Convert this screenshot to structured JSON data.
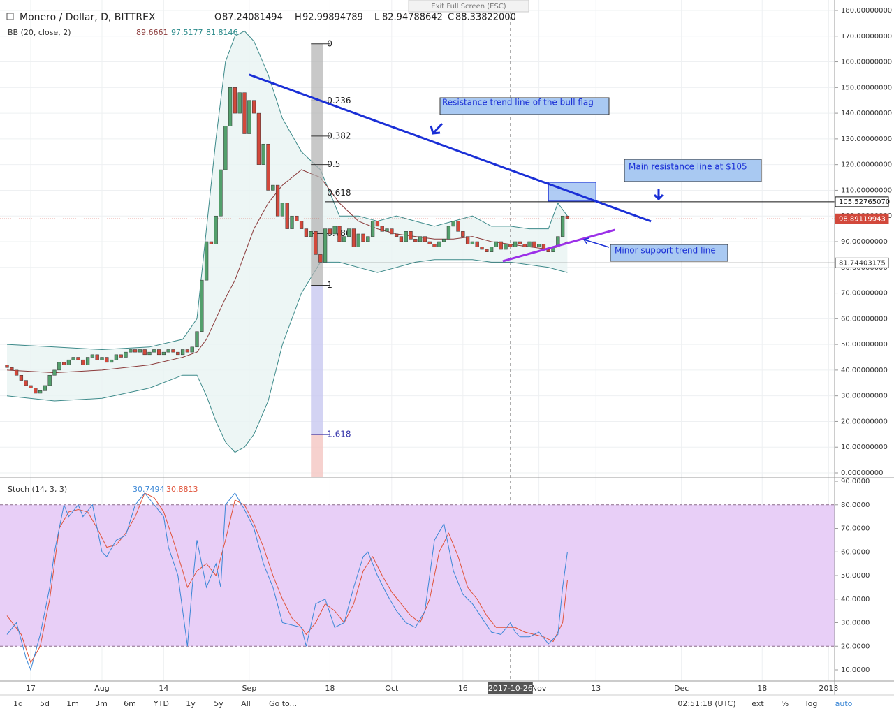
{
  "chart_data": {
    "type": "candlestick",
    "title": "Monero / Dollar, D, BITTREX",
    "fullscreen_hint": "Exit Full Screen (ESC)",
    "ohlc_header": {
      "labels": [
        "O",
        "H",
        "L",
        "C"
      ],
      "values": [
        "87.24081494",
        "92.99894789",
        "82.94788642",
        "88.33822000"
      ]
    },
    "open": [
      42,
      41,
      40,
      38,
      36,
      34,
      33,
      31,
      32,
      34,
      38,
      40,
      43,
      42,
      44,
      45,
      44,
      42,
      45,
      46,
      44,
      45,
      43,
      44,
      46,
      45,
      47,
      48,
      47,
      48,
      46,
      47,
      48,
      46,
      47,
      48,
      47,
      46,
      48,
      47,
      49,
      55,
      75,
      90,
      89,
      100,
      118,
      135,
      150,
      140,
      148,
      132,
      145,
      140,
      120,
      128,
      110,
      112,
      100,
      105,
      95,
      100,
      98,
      95,
      92,
      94,
      85,
      82,
      95,
      93,
      96,
      90,
      92,
      95,
      88,
      93,
      90,
      92,
      98,
      96,
      94,
      95,
      93,
      92,
      90,
      94,
      91,
      90,
      92,
      90,
      89,
      88,
      90,
      91,
      96,
      98,
      94,
      92,
      89,
      90,
      88,
      87,
      86,
      88,
      90,
      87,
      89,
      88,
      90,
      89,
      88,
      90,
      88,
      89,
      87,
      86,
      88,
      92,
      100
    ],
    "close": [
      41,
      40,
      38,
      36,
      34,
      33,
      31,
      32,
      34,
      38,
      40,
      43,
      42,
      44,
      45,
      44,
      42,
      45,
      46,
      44,
      45,
      43,
      44,
      46,
      45,
      47,
      48,
      47,
      48,
      46,
      47,
      48,
      46,
      47,
      48,
      47,
      46,
      48,
      47,
      49,
      55,
      75,
      90,
      89,
      100,
      118,
      135,
      150,
      140,
      148,
      132,
      145,
      140,
      120,
      128,
      110,
      112,
      100,
      105,
      95,
      100,
      98,
      95,
      92,
      94,
      85,
      82,
      95,
      93,
      96,
      90,
      92,
      95,
      88,
      93,
      90,
      92,
      98,
      96,
      94,
      95,
      93,
      92,
      90,
      94,
      91,
      90,
      92,
      90,
      89,
      88,
      90,
      91,
      96,
      98,
      94,
      92,
      89,
      90,
      88,
      87,
      86,
      88,
      90,
      87,
      89,
      88,
      90,
      89,
      88,
      90,
      88,
      89,
      87,
      86,
      88,
      92,
      100,
      99
    ],
    "up_color": "#53a06c",
    "down_color": "#d2483b",
    "xlim": [
      -1.47,
      174.26
    ],
    "ylim": [
      -1.63,
      181.9
    ],
    "xticks": [
      {
        "value": 5,
        "label": "17"
      },
      {
        "value": 20,
        "label": "Aug"
      },
      {
        "value": 33,
        "label": "14"
      },
      {
        "value": 51,
        "label": "Sep"
      },
      {
        "value": 68,
        "label": "18"
      },
      {
        "value": 81,
        "label": "Oct"
      },
      {
        "value": 96,
        "label": "16"
      },
      {
        "value": 112,
        "label": "Nov"
      },
      {
        "value": 124,
        "label": "13"
      },
      {
        "value": 142,
        "label": "Dec"
      },
      {
        "value": 159,
        "label": "18"
      },
      {
        "value": 173,
        "label": "2018"
      }
    ],
    "yticks": [
      {
        "value": 0,
        "label": "0.00000000"
      },
      {
        "value": 10,
        "label": "10.00000000"
      },
      {
        "value": 20,
        "label": "20.00000000"
      },
      {
        "value": 30,
        "label": "30.00000000"
      },
      {
        "value": 40,
        "label": "40.00000000"
      },
      {
        "value": 50,
        "label": "50.00000000"
      },
      {
        "value": 60,
        "label": "60.00000000"
      },
      {
        "value": 70,
        "label": "70.00000000"
      },
      {
        "value": 80,
        "label": "80.00000000"
      },
      {
        "value": 90,
        "label": "90.00000000"
      },
      {
        "value": 100,
        "label": "100.00000000"
      },
      {
        "value": 110,
        "label": "110.00000000"
      },
      {
        "value": 120,
        "label": "120.00000000"
      },
      {
        "value": 130,
        "label": "130.00000000"
      },
      {
        "value": 140,
        "label": "140.00000000"
      },
      {
        "value": 150,
        "label": "150.00000000"
      },
      {
        "value": 160,
        "label": "160.00000000"
      },
      {
        "value": 170,
        "label": "170.00000000"
      },
      {
        "value": 180,
        "label": "180.00000000"
      }
    ],
    "crosshair": {
      "value": 106,
      "label": "2017-10-26"
    },
    "bb": {
      "label": "BB (20, close, 2)",
      "readout": [
        "89.6661",
        "97.5177",
        "81.8146"
      ],
      "x": [
        0,
        10,
        20,
        30,
        37,
        40,
        42,
        44,
        46,
        48,
        50,
        52,
        55,
        58,
        62,
        66,
        70,
        74,
        78,
        82,
        86,
        90,
        94,
        98,
        102,
        106,
        110,
        114,
        116,
        118
      ],
      "upper": [
        50,
        49,
        48,
        49,
        52,
        60,
        95,
        130,
        160,
        170,
        172,
        168,
        155,
        138,
        125,
        118,
        100,
        100,
        98,
        100,
        98,
        96,
        98,
        100,
        96,
        96,
        95,
        95,
        105,
        100
      ],
      "middle": [
        40,
        39,
        40,
        42,
        45,
        47,
        52,
        60,
        68,
        75,
        85,
        95,
        105,
        112,
        118,
        115,
        105,
        98,
        95,
        93,
        92,
        91,
        91,
        92,
        90,
        89,
        88,
        87,
        88,
        90
      ],
      "lower": [
        30,
        28,
        29,
        33,
        38,
        38,
        30,
        20,
        12,
        8,
        10,
        15,
        28,
        50,
        70,
        82,
        82,
        80,
        78,
        80,
        82,
        83,
        83,
        83,
        82,
        82,
        81,
        80,
        79,
        78
      ]
    },
    "fib": {
      "levels": [
        0,
        0.236,
        0.382,
        0.5,
        0.618,
        0.786,
        1,
        1.618
      ],
      "high": 167,
      "low": 73,
      "x": [
        64,
        66.5
      ]
    },
    "trendlines": [
      {
        "name": "resistance",
        "color": "#1a2fd6",
        "x": [
          51,
          135.6
        ],
        "y": [
          155,
          97.9
        ]
      },
      {
        "name": "support",
        "color": "#9b30e8",
        "x": [
          104.4,
          128
        ],
        "y": [
          82.4,
          94.6
        ]
      }
    ],
    "hlines": [
      {
        "value": 105.5276507,
        "x": 67
      },
      {
        "value": 81.74403175,
        "x": 70.5
      }
    ],
    "zone": {
      "x": [
        114,
        124
      ],
      "y": [
        105.8,
        113.1
      ]
    },
    "price_markers": [
      {
        "value": 105.5276507,
        "label": "105.52765070",
        "color": "#111111"
      },
      {
        "value": 98.89119943,
        "label": "98.89119943",
        "color": "#d2483b"
      },
      {
        "value": 81.74403175,
        "label": "81.74403175",
        "color": "#333333"
      }
    ],
    "annotations": [
      "Resistance trend line of the bull flag",
      "Main resistance line at $105",
      "Minor support trend line"
    ],
    "stoch": {
      "label": "Stoch (14, 3, 3)",
      "readout": [
        "30.7494",
        "30.8813"
      ],
      "ylim": [
        5.26,
        90.9
      ],
      "band": [
        20,
        80
      ],
      "yticks": [
        {
          "value": 10,
          "label": "10.0000"
        },
        {
          "value": 20,
          "label": "20.0000"
        },
        {
          "value": 30,
          "label": "30.0000"
        },
        {
          "value": 40,
          "label": "40.0000"
        },
        {
          "value": 50,
          "label": "50.0000"
        },
        {
          "value": 60,
          "label": "60.0000"
        },
        {
          "value": 70,
          "label": "70.0000"
        },
        {
          "value": 80,
          "label": "80.0000"
        },
        {
          "value": 90,
          "label": "90.0000"
        }
      ],
      "k_color": "#3b87d6",
      "d_color": "#e0533a",
      "k_x": [
        0,
        2,
        4,
        5,
        7,
        9,
        10,
        12,
        13,
        15,
        16,
        18,
        20,
        21,
        23,
        25,
        27,
        29,
        31,
        33,
        34,
        36,
        38,
        39,
        40,
        42,
        44,
        45,
        46,
        48,
        50,
        52,
        54,
        56,
        58,
        60,
        62,
        63,
        65,
        67,
        69,
        71,
        73,
        75,
        76,
        78,
        80,
        82,
        84,
        86,
        88,
        90,
        92,
        94,
        96,
        98,
        100,
        102,
        104,
        106,
        107,
        108,
        110,
        112,
        114,
        116,
        117,
        118
      ],
      "k": [
        25,
        30,
        15,
        10,
        25,
        45,
        60,
        80,
        75,
        80,
        75,
        80,
        60,
        58,
        65,
        67,
        80,
        85,
        80,
        75,
        62,
        50,
        20,
        45,
        65,
        45,
        55,
        45,
        80,
        85,
        78,
        70,
        55,
        45,
        30,
        29,
        28,
        20,
        38,
        40,
        28,
        30,
        45,
        58,
        60,
        50,
        42,
        35,
        30,
        28,
        35,
        65,
        72,
        52,
        42,
        38,
        32,
        26,
        25,
        30,
        26,
        24,
        24,
        26,
        21,
        25,
        45,
        60
      ],
      "d_x": [
        0,
        3,
        5,
        7,
        9,
        11,
        13,
        15,
        17,
        19,
        21,
        23,
        25,
        27,
        29,
        31,
        33,
        35,
        37,
        38,
        40,
        42,
        44,
        46,
        48,
        50,
        52,
        54,
        56,
        58,
        60,
        62,
        63,
        65,
        67,
        69,
        71,
        73,
        75,
        77,
        79,
        81,
        83,
        85,
        87,
        89,
        91,
        93,
        95,
        97,
        99,
        101,
        103,
        105,
        107,
        109,
        111,
        113,
        115,
        117,
        118
      ],
      "d": [
        33,
        25,
        13,
        20,
        40,
        70,
        77,
        78,
        77,
        70,
        62,
        63,
        68,
        75,
        85,
        83,
        77,
        65,
        52,
        45,
        52,
        55,
        50,
        65,
        82,
        80,
        72,
        62,
        50,
        40,
        32,
        28,
        25,
        30,
        38,
        35,
        30,
        38,
        52,
        58,
        50,
        43,
        38,
        33,
        30,
        40,
        60,
        68,
        58,
        45,
        40,
        33,
        28,
        28,
        28,
        26,
        25,
        24,
        22,
        30,
        48
      ]
    },
    "toolbar": {
      "left": [
        "1d",
        "5d",
        "1m",
        "3m",
        "6m",
        "YTD",
        "1y",
        "5y",
        "All",
        "Go to..."
      ],
      "right": [
        "02:51:18 (UTC)",
        "ext",
        "%",
        "log",
        "auto"
      ]
    }
  }
}
